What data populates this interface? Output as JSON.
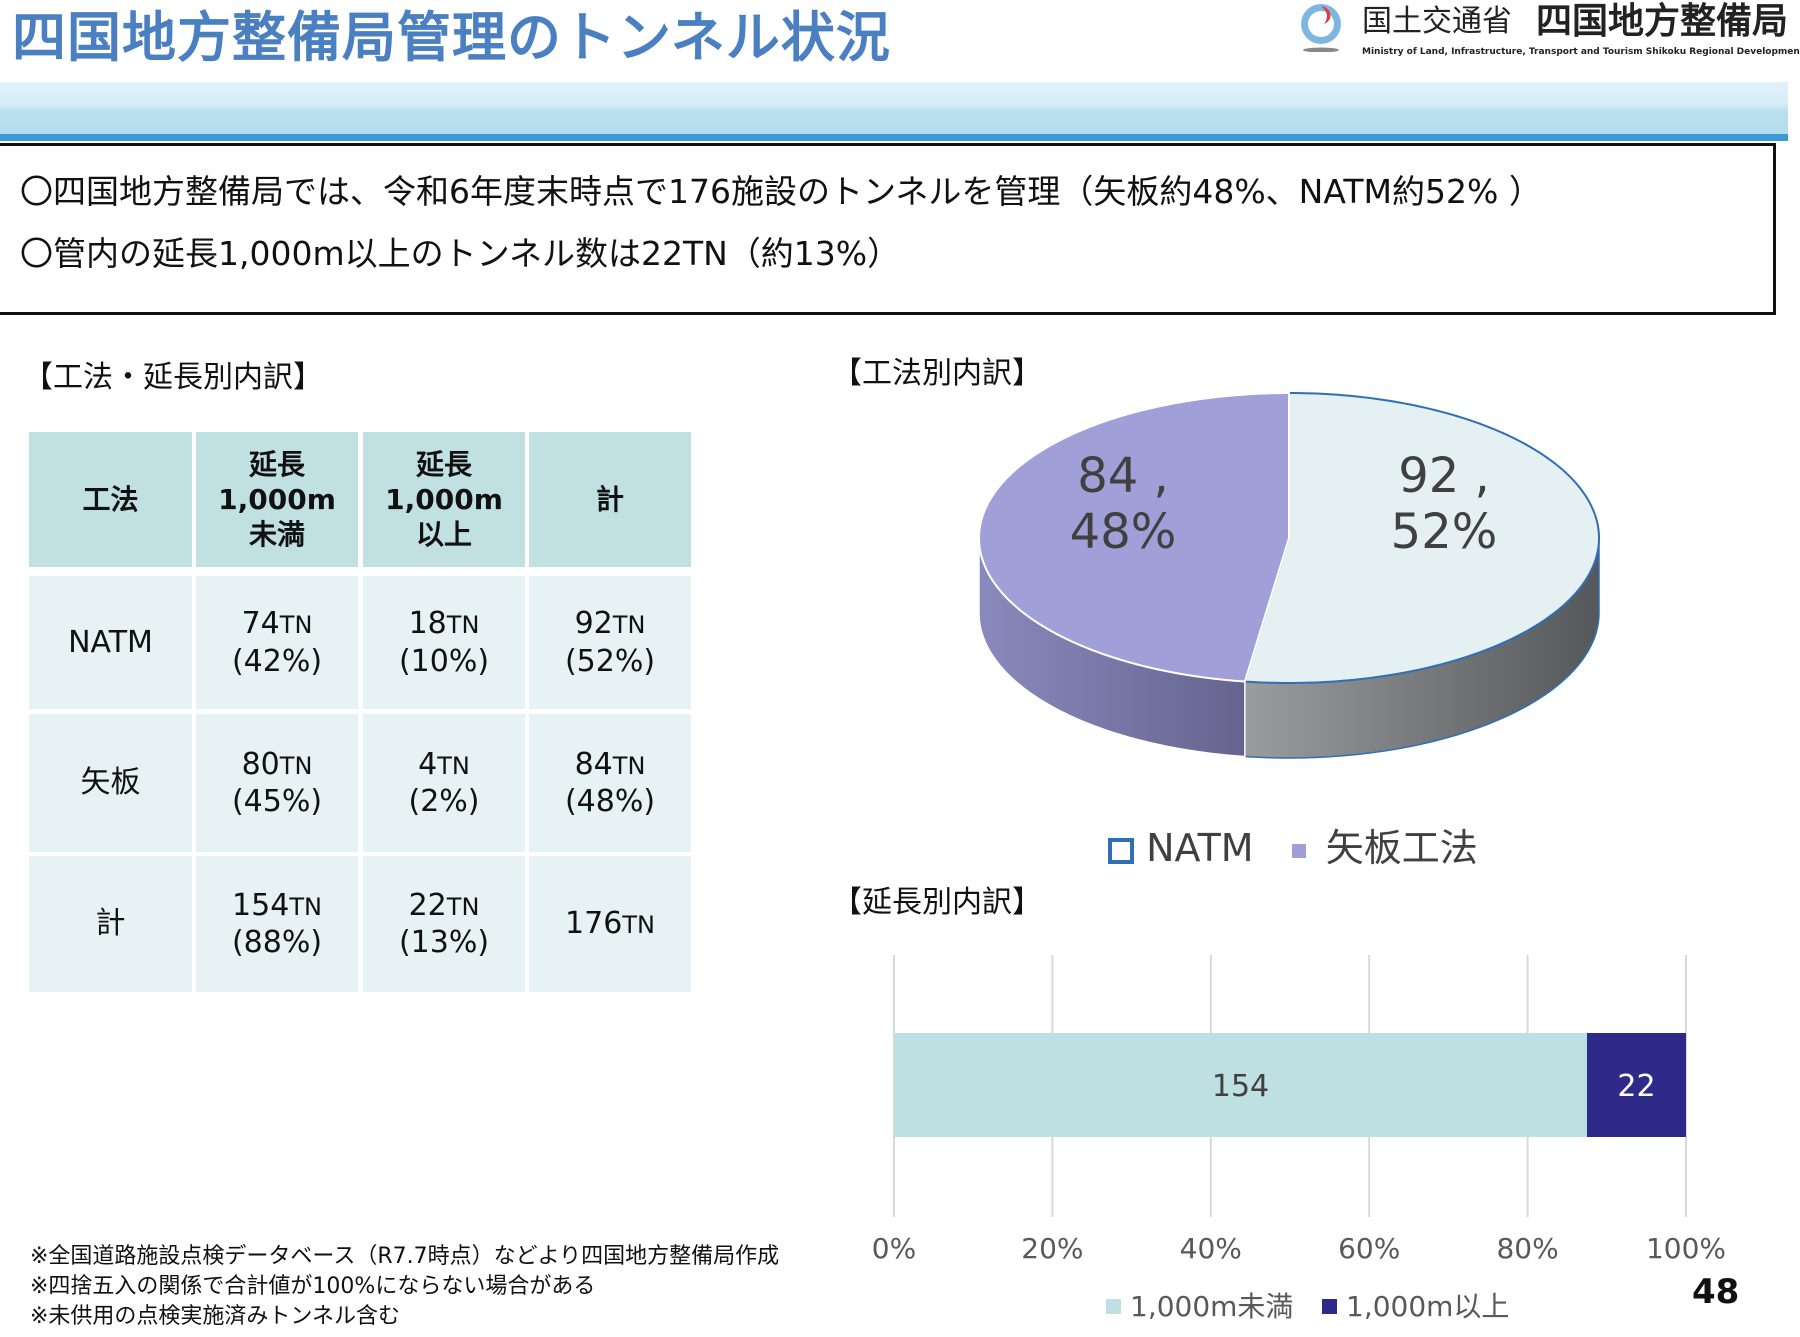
{
  "header": {
    "title": "四国地方整備局管理のトンネル状況",
    "logo": {
      "org_jp": "国土交通省",
      "bureau_jp": "四国地方整備局",
      "org_en": "Ministry of Land, Infrastructure, Transport and Tourism Shikoku Regional Development Bureau"
    }
  },
  "summary": {
    "lines": [
      "〇四国地方整備局では、令和6年度末時点で176施設のトンネルを管理（矢板約48%、NATM約52% ）",
      "〇管内の延長1,000m以上のトンネル数は22TN（約13%）"
    ]
  },
  "table_section": {
    "heading": "【工法・延長別内訳】",
    "headers": [
      "工法",
      "延長\n1,000m\n未満",
      "延長\n1,000m\n以上",
      "計"
    ],
    "unit": "TN",
    "rows": [
      {
        "label": "NATM",
        "cells": [
          {
            "n": "74",
            "p": "(42%)"
          },
          {
            "n": "18",
            "p": "(10%)"
          },
          {
            "n": "92",
            "p": "(52%)"
          }
        ]
      },
      {
        "label": "矢板",
        "cells": [
          {
            "n": "80",
            "p": "(45%)"
          },
          {
            "n": "4",
            "p": "(2%)"
          },
          {
            "n": "84",
            "p": "(48%)"
          }
        ]
      },
      {
        "label": "計",
        "cells": [
          {
            "n": "154",
            "p": "(88%)"
          },
          {
            "n": "22",
            "p": "(13%)"
          },
          {
            "n": "176",
            "p": ""
          }
        ]
      }
    ]
  },
  "chart_data": [
    {
      "type": "pie",
      "title": "【工法別内訳】",
      "three_d": true,
      "start": "top",
      "direction": "clockwise",
      "slices": [
        {
          "name": "NATM",
          "value": 92,
          "percent": 52,
          "label_line1": "92 ,",
          "label_line2": "52%",
          "color": "#e4f0f2",
          "side_color": "#6e6f70"
        },
        {
          "name": "矢板工法",
          "value": 84,
          "percent": 48,
          "label_line1": "84 ,",
          "label_line2": "48%",
          "color": "#a09fd8",
          "side_color": "#74729f"
        }
      ],
      "legend": {
        "position": "bottom",
        "items": [
          "NATM",
          "矢板工法"
        ],
        "colors": [
          "#2f6fb8",
          "#a09fd8"
        ]
      }
    },
    {
      "type": "bar",
      "orientation": "horizontal",
      "stacked": "percent",
      "title": "【延長別内訳】",
      "series": [
        {
          "name": "1,000m未満",
          "values": [
            154
          ],
          "label": "154",
          "color": "#bfe0e2"
        },
        {
          "name": "1,000m以上",
          "values": [
            22
          ],
          "label": "22",
          "color": "#2d2a8a"
        }
      ],
      "xlim": [
        0,
        100
      ],
      "xticks": [
        "0%",
        "20%",
        "40%",
        "60%",
        "80%",
        "100%"
      ],
      "grid": true,
      "legend": {
        "position": "bottom"
      }
    }
  ],
  "footnotes": [
    "※全国道路施設点検データベース（R7.7時点）などより四国地方整備局作成",
    "※四捨五入の関係で合計値が100%にならない場合がある",
    "※未供用の点検実施済みトンネル含む"
  ],
  "page_number": "48"
}
